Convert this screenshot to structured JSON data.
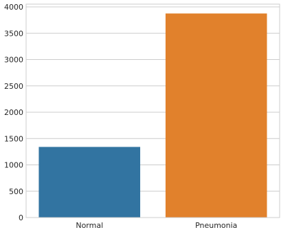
{
  "chart_data": {
    "type": "bar",
    "title": "",
    "xlabel": "",
    "ylabel": "",
    "categories": [
      "Normal",
      "Pneumonia"
    ],
    "values": [
      1341,
      3875
    ],
    "colors": [
      "#3274a1",
      "#e1812c"
    ],
    "ylim": [
      0,
      4000
    ],
    "yticks": [
      0,
      500,
      1000,
      1500,
      2000,
      2500,
      3000,
      3500,
      4000
    ],
    "ytick_labels": [
      "0",
      "500",
      "1000",
      "1500",
      "2000",
      "2500",
      "3000",
      "3500",
      "4000"
    ],
    "grid": true,
    "legend": false
  }
}
